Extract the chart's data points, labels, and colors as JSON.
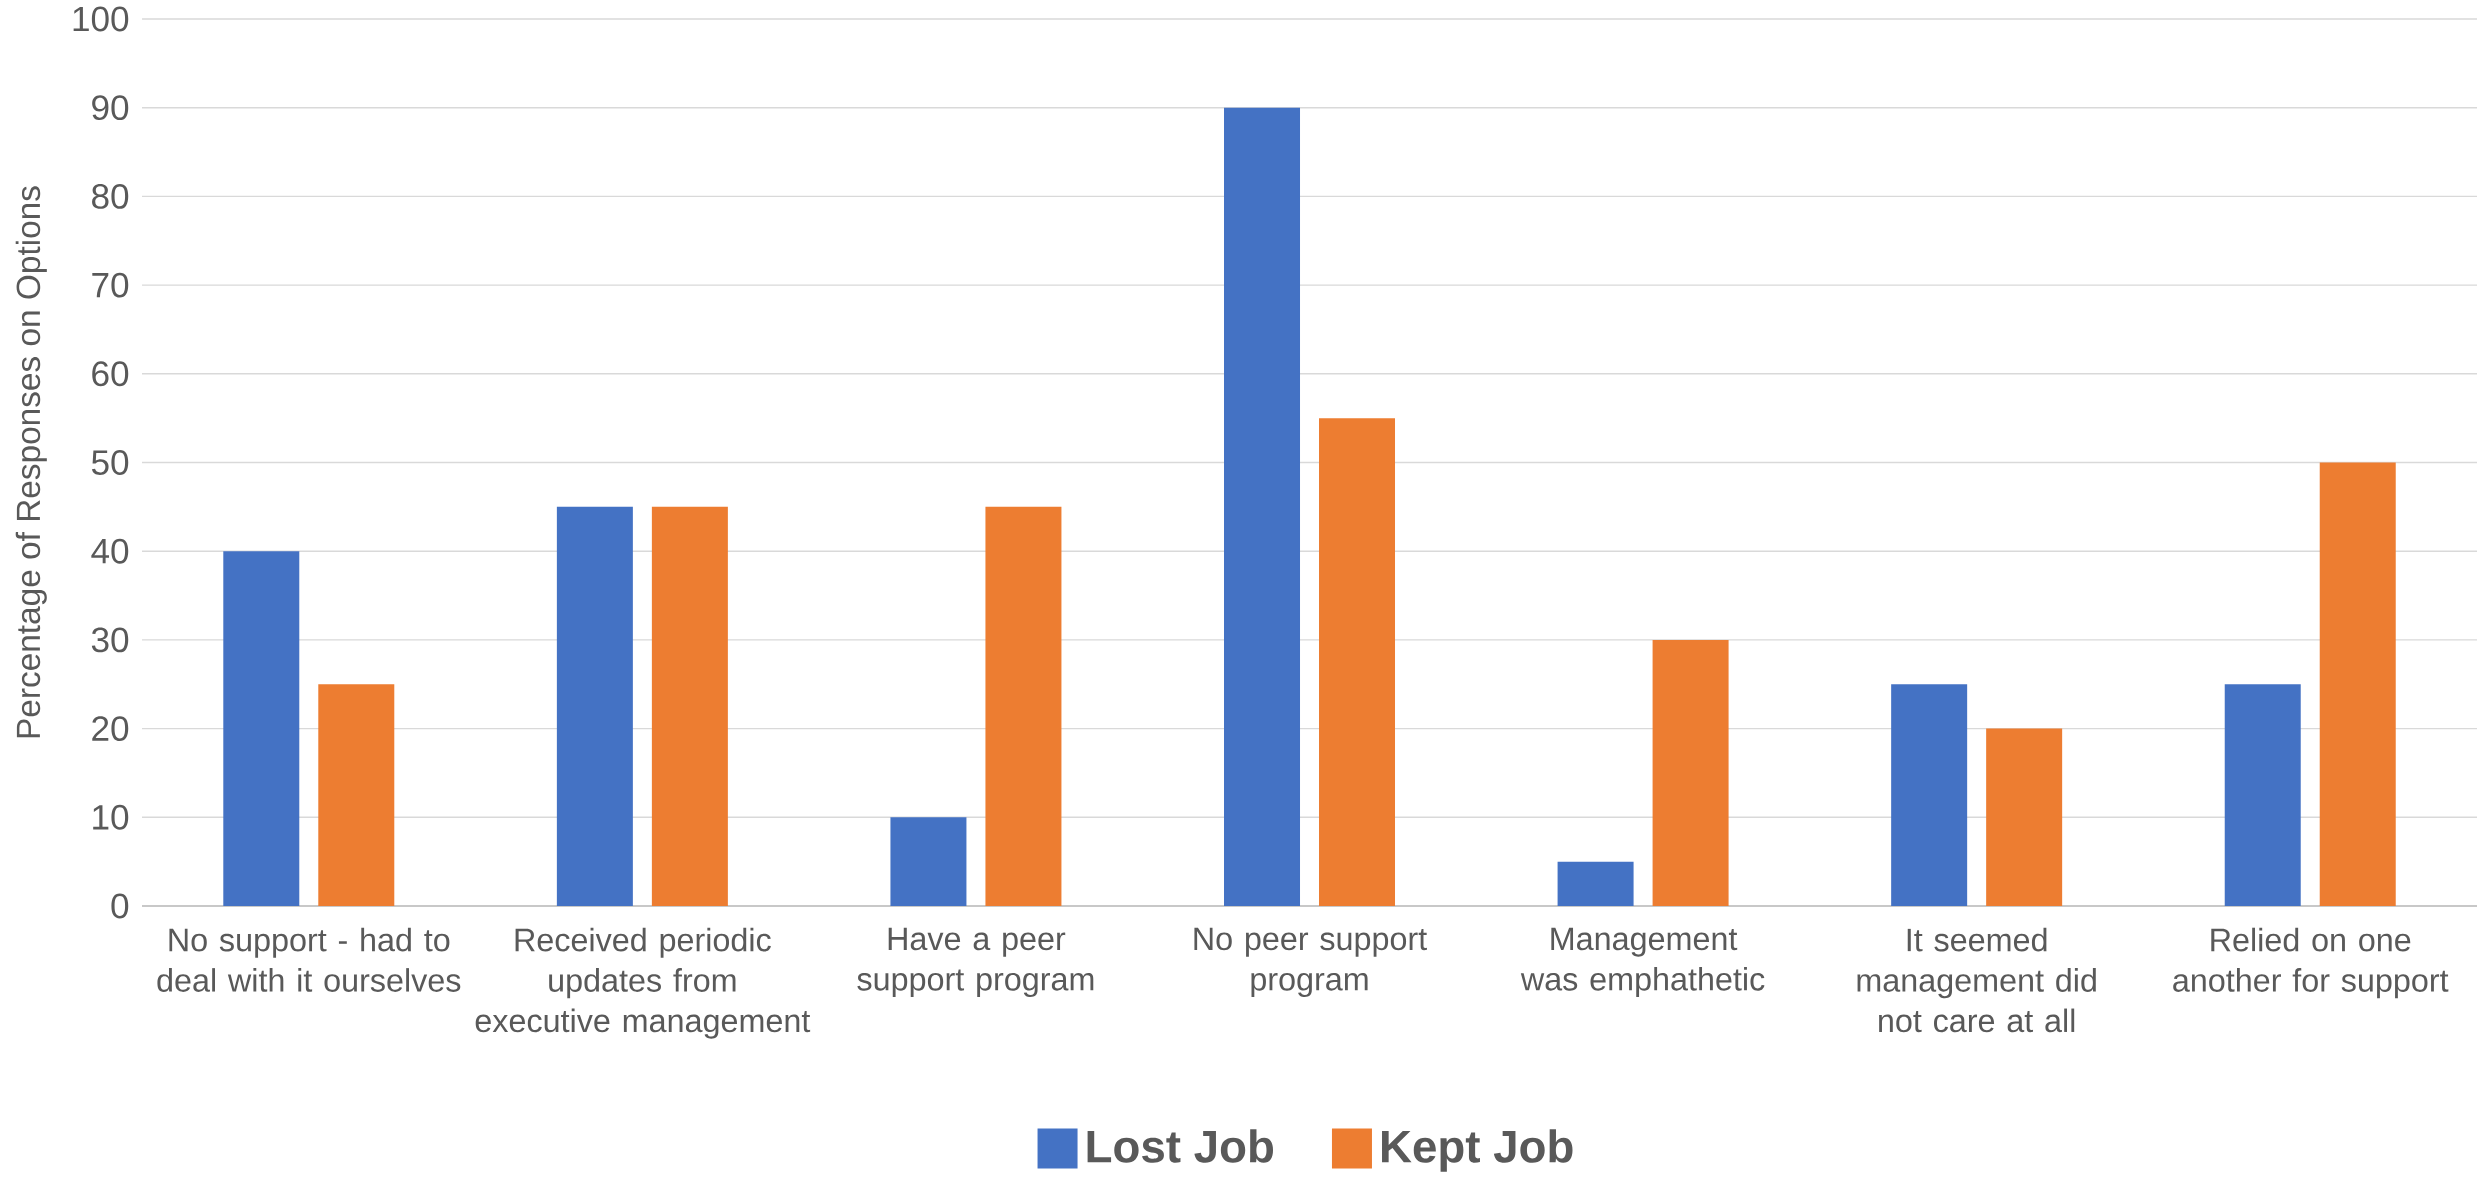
{
  "chart_data": {
    "type": "bar",
    "ylabel": "Percentage of Responses on Options",
    "categories": [
      "No support - had to deal with it ourselves",
      "Received periodic updates from executive management",
      "Have a peer support program",
      "No peer support program",
      "Management was emphathetic",
      "It seemed management did not care at all",
      "Relied on one another for support"
    ],
    "series": [
      {
        "name": "Lost Job",
        "color": "#4472c4",
        "values": [
          40,
          45,
          10,
          90,
          5,
          25,
          25
        ]
      },
      {
        "name": "Kept Job",
        "color": "#ed7d31",
        "values": [
          25,
          45,
          45,
          55,
          30,
          20,
          50
        ]
      }
    ],
    "ylim": [
      0,
      100
    ],
    "yticks": [
      0,
      10,
      20,
      30,
      40,
      50,
      60,
      70,
      80,
      90,
      100
    ],
    "grid": "y",
    "legend": "bottom"
  }
}
